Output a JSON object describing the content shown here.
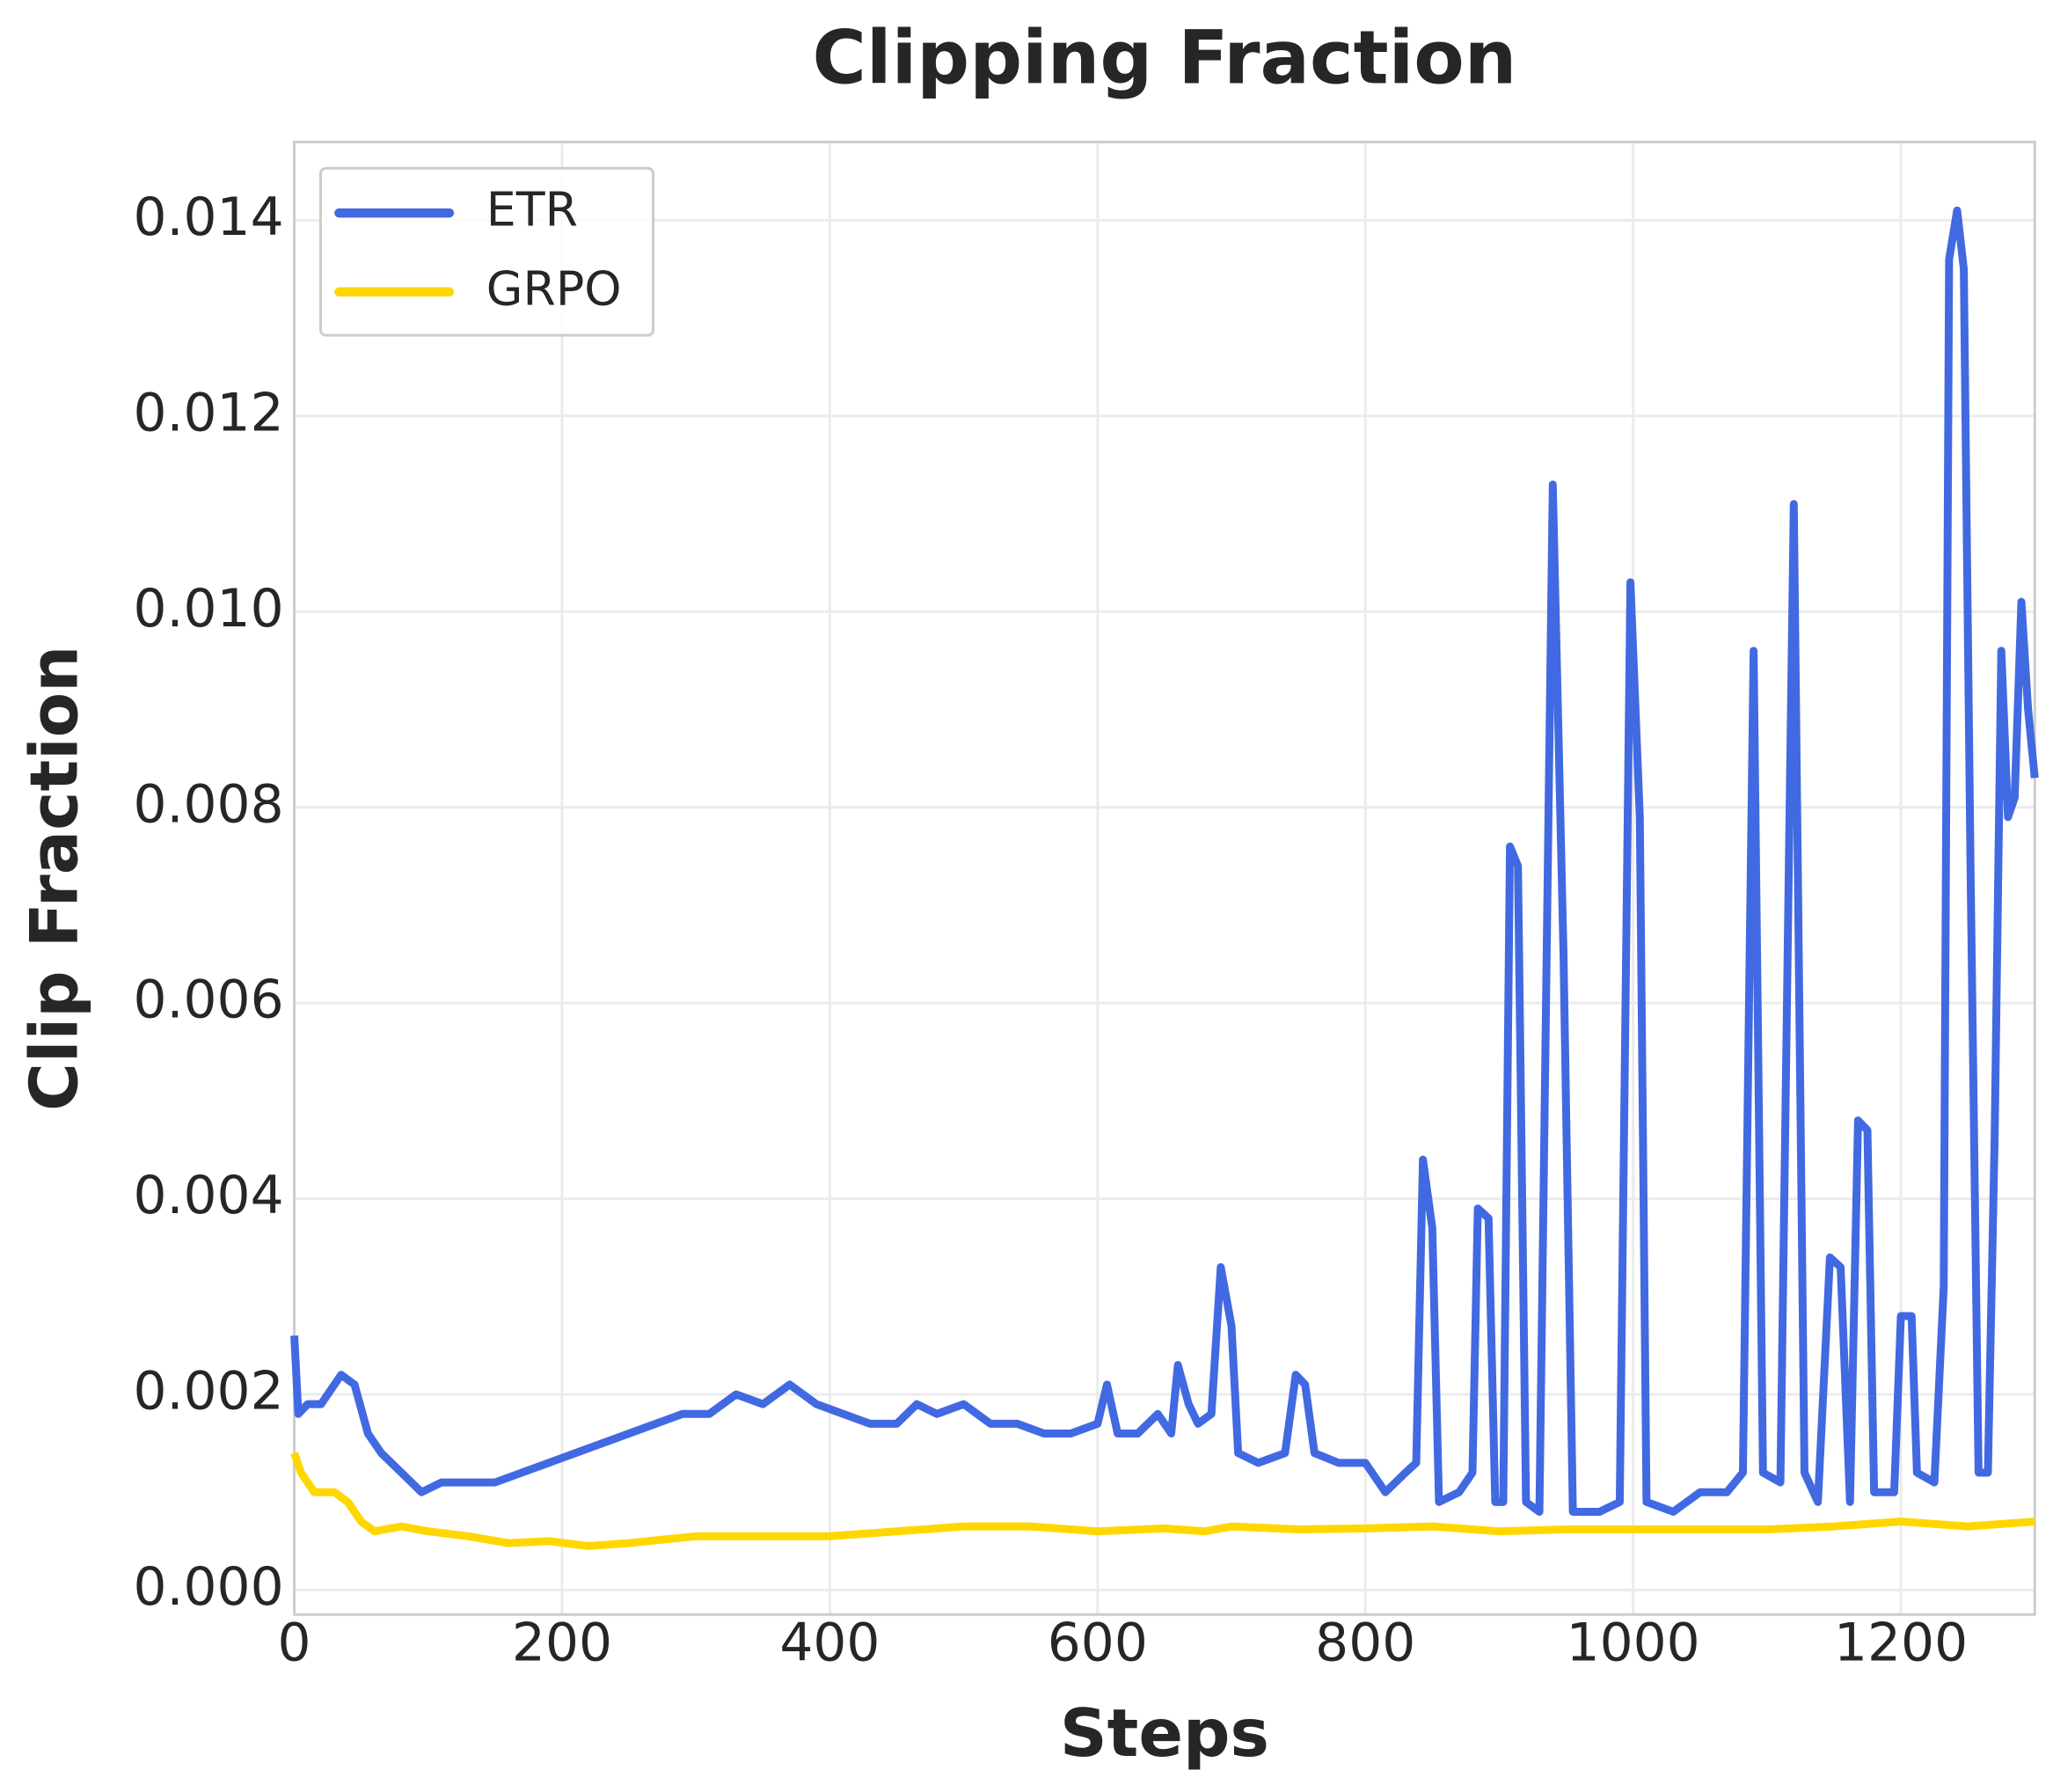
{
  "chart_data": {
    "type": "line",
    "title": "Clipping Fraction",
    "x_label": "Steps",
    "y_label": "Clip Fraction",
    "xlim": [
      0,
      1300
    ],
    "ylim": [
      -0.00025,
      0.0148
    ],
    "xticks": [
      0,
      200,
      400,
      600,
      800,
      1000,
      1200
    ],
    "yticks": [
      {
        "value": 0,
        "label": "0.000"
      },
      {
        "value": 0.002,
        "label": "0.002"
      },
      {
        "value": 0.004,
        "label": "0.004"
      },
      {
        "value": 0.006,
        "label": "0.006"
      },
      {
        "value": 0.008,
        "label": "0.008"
      },
      {
        "value": 0.01,
        "label": "0.010"
      },
      {
        "value": 0.012,
        "label": "0.012"
      },
      {
        "value": 0.014,
        "label": "0.014"
      }
    ],
    "grid": true,
    "legend": "upper-left",
    "series": [
      {
        "name": "ETR",
        "color": "#4169e1",
        "x": [
          0,
          3,
          10,
          20,
          30,
          35,
          45,
          55,
          65,
          80,
          95,
          110,
          130,
          150,
          170,
          190,
          210,
          230,
          250,
          270,
          290,
          310,
          330,
          350,
          370,
          390,
          410,
          430,
          450,
          465,
          480,
          500,
          520,
          540,
          560,
          580,
          600,
          607,
          615,
          630,
          645,
          655,
          660,
          668,
          675,
          685,
          692,
          700,
          705,
          720,
          740,
          748,
          755,
          762,
          780,
          800,
          815,
          830,
          838,
          843,
          850,
          855,
          870,
          880,
          884,
          892,
          897,
          903,
          908,
          914,
          920,
          930,
          940,
          948,
          955,
          975,
          990,
          998,
          1005,
          1010,
          1030,
          1050,
          1070,
          1082,
          1090,
          1097,
          1110,
          1120,
          1128,
          1138,
          1147,
          1155,
          1162,
          1168,
          1175,
          1180,
          1195,
          1200,
          1208,
          1212,
          1225,
          1232,
          1236,
          1242,
          1247,
          1252,
          1258,
          1265,
          1270,
          1275,
          1280,
          1285,
          1290,
          1295,
          1300
        ],
        "values": [
          0.0026,
          0.0018,
          0.0019,
          0.0019,
          0.0021,
          0.0022,
          0.0021,
          0.0016,
          0.0014,
          0.0012,
          0.001,
          0.0011,
          0.0011,
          0.0011,
          0.0012,
          0.0013,
          0.0014,
          0.0015,
          0.0016,
          0.0017,
          0.0018,
          0.0018,
          0.002,
          0.0019,
          0.0021,
          0.0019,
          0.0018,
          0.0017,
          0.0017,
          0.0019,
          0.0018,
          0.0019,
          0.0017,
          0.0017,
          0.0016,
          0.0016,
          0.0017,
          0.0021,
          0.0016,
          0.0016,
          0.0018,
          0.0016,
          0.0023,
          0.0019,
          0.0017,
          0.0018,
          0.0033,
          0.0027,
          0.0014,
          0.0013,
          0.0014,
          0.0022,
          0.0021,
          0.0014,
          0.0013,
          0.0013,
          0.001,
          0.0012,
          0.0013,
          0.0044,
          0.0037,
          0.0009,
          0.001,
          0.0012,
          0.0039,
          0.0038,
          0.0009,
          0.0009,
          0.0076,
          0.0074,
          0.0009,
          0.0008,
          0.0113,
          0.0065,
          0.0008,
          0.0008,
          0.0009,
          0.0103,
          0.0079,
          0.0009,
          0.0008,
          0.001,
          0.001,
          0.0012,
          0.0096,
          0.0012,
          0.0011,
          0.0111,
          0.0012,
          0.0009,
          0.0034,
          0.0033,
          0.0009,
          0.0048,
          0.0047,
          0.001,
          0.001,
          0.0028,
          0.0028,
          0.0012,
          0.0011,
          0.0031,
          0.0136,
          0.0141,
          0.0135,
          0.0074,
          0.0012,
          0.0012,
          0.0046,
          0.0096,
          0.0079,
          0.0081,
          0.0101,
          0.009,
          0.0083
        ]
      },
      {
        "name": "GRPO",
        "color": "#ffd700",
        "x": [
          0,
          5,
          15,
          30,
          40,
          50,
          60,
          80,
          100,
          130,
          160,
          190,
          220,
          250,
          300,
          350,
          400,
          450,
          500,
          550,
          600,
          650,
          680,
          700,
          750,
          800,
          850,
          900,
          950,
          1000,
          1050,
          1100,
          1150,
          1200,
          1250,
          1300
        ],
        "values": [
          0.0014,
          0.0012,
          0.001,
          0.001,
          0.0009,
          0.0007,
          0.0006,
          0.00065,
          0.0006,
          0.00055,
          0.00048,
          0.0005,
          0.00045,
          0.00048,
          0.00055,
          0.00055,
          0.00055,
          0.0006,
          0.00065,
          0.00065,
          0.0006,
          0.00063,
          0.0006,
          0.00065,
          0.00062,
          0.00063,
          0.00065,
          0.0006,
          0.00062,
          0.00062,
          0.00062,
          0.00062,
          0.00065,
          0.0007,
          0.00065,
          0.0007
        ]
      }
    ]
  }
}
